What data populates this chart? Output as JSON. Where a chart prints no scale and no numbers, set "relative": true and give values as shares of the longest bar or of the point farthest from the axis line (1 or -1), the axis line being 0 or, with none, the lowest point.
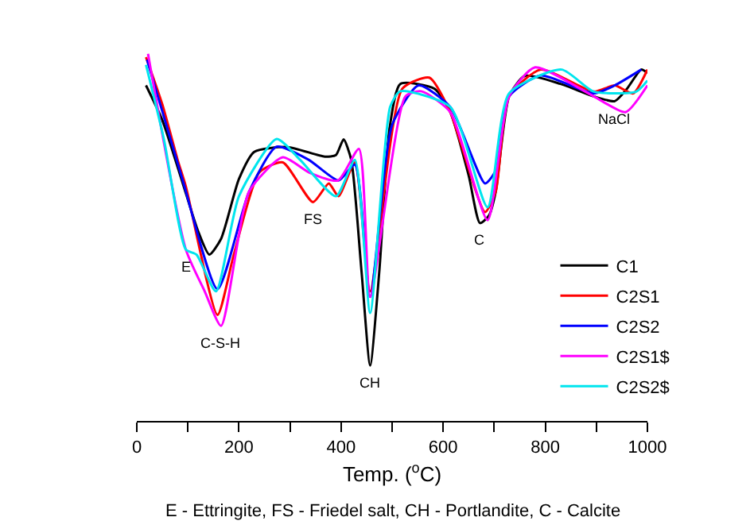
{
  "chart_data": {
    "type": "line",
    "relative": true,
    "xlabel": "Temp. ($^{o}$C)",
    "annotations": [
      {
        "text": "E",
        "x": 96,
        "y": 0.467
      },
      {
        "text": "C-S-H",
        "x": 165,
        "y": 0.259
      },
      {
        "text": "FS",
        "x": 345,
        "y": 0.596
      },
      {
        "text": "CH",
        "x": 457,
        "y": 0.151
      },
      {
        "text": "C",
        "x": 672,
        "y": 0.539
      },
      {
        "text": "NaCl",
        "x": 936,
        "y": 0.871
      },
      "E - Ettringite, FS - Friedel salt, CH - Portlandite, C - Calcite"
    ],
    "xlim": [
      0,
      1000
    ],
    "xticks": [
      0,
      {
        "value": 100,
        "label": null
      },
      200,
      {
        "value": 300,
        "label": null
      },
      400,
      {
        "value": 500,
        "label": null
      },
      600,
      {
        "value": 700,
        "label": null
      },
      800,
      {
        "value": 900,
        "label": null
      },
      1000
    ],
    "legend": "bottom right",
    "marker": "none",
    "line_style": "solid",
    "series": [
      {
        "name": "C1",
        "color": "#000000",
        "x": [
          18,
          50,
          90,
          120,
          142,
          165,
          200,
          230,
          295,
          368,
          390,
          405,
          420,
          440,
          457,
          475,
          495,
          516,
          583,
          614,
          650,
          672,
          690,
          703,
          729,
          760,
          830,
          895,
          936,
          960,
          988,
          1000
        ],
        "values": [
          0.914,
          0.819,
          0.647,
          0.517,
          0.453,
          0.496,
          0.659,
          0.733,
          0.746,
          0.72,
          0.724,
          0.767,
          0.711,
          0.409,
          0.151,
          0.409,
          0.797,
          0.918,
          0.905,
          0.841,
          0.668,
          0.539,
          0.56,
          0.625,
          0.884,
          0.94,
          0.918,
          0.884,
          0.871,
          0.905,
          0.957,
          0.948
        ]
      },
      {
        "name": "C2S1",
        "color": "#ff0000",
        "x": [
          18,
          50,
          80,
          96,
          158,
          190,
          240,
          286,
          345,
          376,
          395,
          427,
          457,
          520,
          573,
          614,
          682,
          703,
          729,
          791,
          895,
          936,
          972,
          1000
        ],
        "values": [
          0.991,
          0.862,
          0.711,
          0.639,
          0.289,
          0.453,
          0.677,
          0.704,
          0.596,
          0.647,
          0.612,
          0.704,
          0.353,
          0.905,
          0.935,
          0.841,
          0.569,
          0.625,
          0.884,
          0.957,
          0.897,
          0.914,
          0.892,
          0.957
        ]
      },
      {
        "name": "C2S2",
        "color": "#0000ff",
        "x": [
          20,
          90,
          158,
          220,
          274,
          337,
          395,
          427,
          457,
          500,
          552,
          614,
          682,
          703,
          729,
          791,
          895,
          936,
          988
        ],
        "values": [
          0.984,
          0.655,
          0.359,
          0.625,
          0.747,
          0.711,
          0.655,
          0.698,
          0.338,
          0.806,
          0.914,
          0.855,
          0.647,
          0.682,
          0.884,
          0.941,
          0.892,
          0.914,
          0.957
        ]
      },
      {
        "name": "C2S1$",
        "color": "#ff00ff",
        "x": [
          22,
          96,
          133,
          165,
          220,
          286,
          337,
          394,
          435,
          457,
          526,
          557,
          614,
          687,
          729,
          780,
          895,
          957,
          1000
        ],
        "values": [
          1.0,
          0.467,
          0.353,
          0.259,
          0.625,
          0.718,
          0.677,
          0.655,
          0.741,
          0.338,
          0.884,
          0.898,
          0.841,
          0.547,
          0.884,
          0.963,
          0.884,
          0.841,
          0.914
        ]
      },
      {
        "name": "C2S2$",
        "color": "#00e5ee",
        "x": [
          18,
          53,
          96,
          117,
          155,
          200,
          274,
          320,
          390,
          427,
          457,
          496,
          516,
          614,
          687,
          729,
          832,
          895,
          978,
          1000
        ],
        "values": [
          0.97,
          0.768,
          0.467,
          0.453,
          0.353,
          0.612,
          0.768,
          0.711,
          0.612,
          0.711,
          0.294,
          0.855,
          0.898,
          0.855,
          0.582,
          0.892,
          0.957,
          0.897,
          0.897,
          0.927
        ]
      }
    ]
  }
}
